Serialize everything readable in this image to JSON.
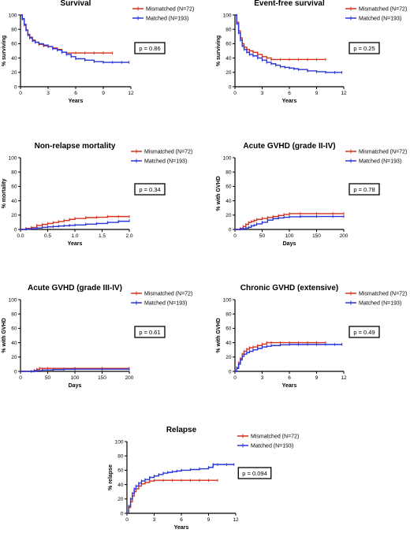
{
  "colors": {
    "mismatched": "#d4331f",
    "matched": "#2a36d8",
    "axis": "#000000"
  },
  "chart_data": [
    {
      "type": "line",
      "title": "Survival",
      "xlabel": "Years",
      "ylabel": "% surviving",
      "xlim": [
        0,
        12
      ],
      "ylim": [
        0,
        100
      ],
      "xticks": [
        0,
        3,
        6,
        9,
        12
      ],
      "yticks": [
        0,
        20,
        40,
        60,
        80,
        100
      ],
      "legend_position": "top-right",
      "pvalue": "p = 0.86",
      "series": [
        {
          "name": "Mismatched (N=72)",
          "color_key": "mismatched",
          "x": [
            0,
            0.2,
            0.4,
            0.6,
            0.8,
            1.0,
            1.3,
            1.6,
            2.0,
            2.5,
            3.0,
            3.5,
            4.0,
            4.5,
            5.0,
            6.0,
            7.0,
            8.0,
            9.0,
            10.0
          ],
          "y": [
            100,
            94,
            86,
            79,
            73,
            69,
            65,
            62,
            59,
            57,
            56,
            54,
            52,
            48,
            47,
            47,
            47,
            47,
            47,
            47
          ]
        },
        {
          "name": "Matched (N=193)",
          "color_key": "matched",
          "x": [
            0,
            0.2,
            0.4,
            0.6,
            0.8,
            1.0,
            1.3,
            1.6,
            2.0,
            2.5,
            3.0,
            3.5,
            4.0,
            4.5,
            5.0,
            5.5,
            6.0,
            7.0,
            8.0,
            9.0,
            10.0,
            11.0,
            11.8
          ],
          "y": [
            100,
            95,
            87,
            79,
            72,
            68,
            64,
            62,
            60,
            58,
            56,
            53,
            51,
            48,
            45,
            42,
            39,
            37,
            35,
            34,
            34,
            34,
            34
          ]
        }
      ]
    },
    {
      "type": "line",
      "title": "Event-free survival",
      "xlabel": "Years",
      "ylabel": "% surviving",
      "xlim": [
        0,
        12
      ],
      "ylim": [
        0,
        100
      ],
      "xticks": [
        0,
        3,
        6,
        9,
        12
      ],
      "yticks": [
        0,
        20,
        40,
        60,
        80,
        100
      ],
      "legend_position": "top-right",
      "pvalue": "p = 0.25",
      "series": [
        {
          "name": "Mismatched (N=72)",
          "color_key": "mismatched",
          "x": [
            0,
            0.2,
            0.4,
            0.6,
            0.8,
            1.0,
            1.3,
            1.6,
            2.0,
            2.5,
            3.0,
            3.5,
            4.0,
            5.0,
            6.0,
            7.0,
            8.0,
            9.0,
            10.0
          ],
          "y": [
            100,
            90,
            78,
            68,
            60,
            55,
            52,
            50,
            48,
            45,
            42,
            40,
            38,
            38,
            38,
            38,
            38,
            38,
            38
          ]
        },
        {
          "name": "Matched (N=193)",
          "color_key": "matched",
          "x": [
            0,
            0.2,
            0.4,
            0.6,
            0.8,
            1.0,
            1.3,
            1.6,
            2.0,
            2.5,
            3.0,
            3.5,
            4.0,
            4.5,
            5.0,
            5.5,
            6.0,
            6.5,
            7.0,
            8.0,
            9.0,
            10.0,
            11.0,
            11.8
          ],
          "y": [
            100,
            88,
            75,
            65,
            57,
            52,
            48,
            45,
            43,
            40,
            37,
            34,
            32,
            30,
            28,
            27,
            26,
            25,
            24,
            22,
            21,
            20,
            20,
            20
          ]
        }
      ]
    },
    {
      "type": "line",
      "title": "Non-relapse mortality",
      "xlabel": "Years",
      "ylabel": "% mortality",
      "xlim": [
        0,
        2
      ],
      "ylim": [
        0,
        100
      ],
      "xticks": [
        0.0,
        0.5,
        1.0,
        1.5,
        2.0
      ],
      "xtick_labels": [
        "0.0",
        "0.5",
        "1.0",
        "1.5",
        "2.0"
      ],
      "yticks": [
        0,
        20,
        40,
        60,
        80,
        100
      ],
      "legend_position": "top-right",
      "pvalue": "p = 0.34",
      "series": [
        {
          "name": "Mismatched (N=72)",
          "color_key": "mismatched",
          "x": [
            0,
            0.1,
            0.2,
            0.3,
            0.4,
            0.5,
            0.6,
            0.7,
            0.8,
            0.9,
            1.0,
            1.2,
            1.4,
            1.6,
            1.8,
            2.0
          ],
          "y": [
            0,
            1.4,
            2.8,
            5.6,
            7,
            8.3,
            9.7,
            11.1,
            12.5,
            14,
            15.3,
            16.5,
            17,
            18,
            18,
            18
          ]
        },
        {
          "name": "Matched (N=193)",
          "color_key": "matched",
          "x": [
            0,
            0.1,
            0.2,
            0.3,
            0.4,
            0.5,
            0.6,
            0.7,
            0.8,
            0.9,
            1.0,
            1.2,
            1.4,
            1.6,
            1.8,
            2.0
          ],
          "y": [
            0,
            0.5,
            1,
            2,
            3,
            3.6,
            4.1,
            4.7,
            5.2,
            5.7,
            6.2,
            7.3,
            8.3,
            9.8,
            11.4,
            12.4
          ]
        }
      ]
    },
    {
      "type": "line",
      "title": "Acute GVHD (grade II-IV)",
      "xlabel": "Days",
      "ylabel": "% with GVHD",
      "xlim": [
        0,
        200
      ],
      "ylim": [
        0,
        100
      ],
      "xticks": [
        0,
        50,
        100,
        150,
        200
      ],
      "yticks": [
        0,
        20,
        40,
        60,
        80,
        100
      ],
      "legend_position": "top-right",
      "pvalue": "p = 0.78",
      "series": [
        {
          "name": "Mismatched (N=72)",
          "color_key": "mismatched",
          "x": [
            0,
            10,
            15,
            20,
            25,
            30,
            35,
            40,
            50,
            60,
            70,
            80,
            90,
            100,
            120,
            150,
            180,
            200
          ],
          "y": [
            0,
            1.4,
            4,
            7,
            9.7,
            11.1,
            12.5,
            14,
            15.3,
            16.7,
            18,
            19.4,
            20.8,
            22,
            22,
            22,
            22,
            22
          ]
        },
        {
          "name": "Matched (N=193)",
          "color_key": "matched",
          "x": [
            0,
            10,
            15,
            20,
            25,
            30,
            35,
            40,
            50,
            60,
            70,
            80,
            90,
            100,
            120,
            150,
            180,
            200
          ],
          "y": [
            0,
            0.5,
            1,
            2,
            3,
            5,
            6,
            7.8,
            10,
            13,
            15,
            16,
            17,
            17.6,
            18,
            18.1,
            18.1,
            18.1
          ]
        }
      ]
    },
    {
      "type": "line",
      "title": "Acute GVHD (grade III-IV)",
      "xlabel": "Days",
      "ylabel": "% with GVHD",
      "xlim": [
        0,
        200
      ],
      "ylim": [
        0,
        100
      ],
      "xticks": [
        0,
        50,
        100,
        150,
        200
      ],
      "yticks": [
        0,
        20,
        40,
        60,
        80,
        100
      ],
      "legend_position": "top-right",
      "pvalue": "p = 0.61",
      "series": [
        {
          "name": "Mismatched (N=72)",
          "color_key": "mismatched",
          "x": [
            0,
            20,
            25,
            30,
            35,
            50,
            100,
            150,
            200
          ],
          "y": [
            0,
            0,
            1.4,
            2.8,
            4.2,
            4.2,
            4.2,
            4.2,
            4.2
          ]
        },
        {
          "name": "Matched (N=193)",
          "color_key": "matched",
          "x": [
            0,
            20,
            25,
            30,
            40,
            60,
            80,
            100,
            150,
            200
          ],
          "y": [
            0,
            0,
            0.5,
            1,
            2,
            2.6,
            3,
            3.1,
            3.1,
            3.1
          ]
        }
      ]
    },
    {
      "type": "line",
      "title": "Chronic GVHD (extensive)",
      "xlabel": "Years",
      "ylabel": "% with GVHD",
      "xlim": [
        0,
        12
      ],
      "ylim": [
        0,
        100
      ],
      "xticks": [
        0,
        3,
        6,
        9,
        12
      ],
      "yticks": [
        0,
        20,
        40,
        60,
        80,
        100
      ],
      "legend_position": "top-right",
      "pvalue": "p = 0.49",
      "series": [
        {
          "name": "Mismatched (N=72)",
          "color_key": "mismatched",
          "x": [
            0,
            0.2,
            0.4,
            0.6,
            0.8,
            1.0,
            1.3,
            1.6,
            2.0,
            2.5,
            3.0,
            3.5,
            4.0,
            5.0,
            6.0,
            7.0,
            8.0,
            9.0,
            10.0
          ],
          "y": [
            0,
            5,
            12,
            18,
            24,
            28,
            31,
            33,
            34,
            36,
            38,
            40,
            40,
            40,
            40,
            40,
            40,
            40,
            40
          ]
        },
        {
          "name": "Matched (N=193)",
          "color_key": "matched",
          "x": [
            0,
            0.2,
            0.4,
            0.6,
            0.8,
            1.0,
            1.3,
            1.6,
            2.0,
            2.5,
            3.0,
            3.5,
            4.0,
            5.0,
            6.0,
            7.0,
            8.0,
            9.0,
            10.0,
            11.0,
            11.8
          ],
          "y": [
            0,
            4,
            10,
            16,
            21,
            24,
            26,
            28,
            30,
            32,
            34,
            35,
            36,
            37,
            37.5,
            37.5,
            37.5,
            37.5,
            37.5,
            37.5,
            37.5
          ]
        }
      ]
    },
    {
      "type": "line",
      "title": "Relapse",
      "xlabel": "Years",
      "ylabel": "% relapse",
      "xlim": [
        0,
        12
      ],
      "ylim": [
        0,
        100
      ],
      "xticks": [
        0,
        3,
        6,
        9,
        12
      ],
      "yticks": [
        0,
        20,
        40,
        60,
        80,
        100
      ],
      "legend_position": "top-right",
      "pvalue": "p = 0.094",
      "series": [
        {
          "name": "Mismatched (N=72)",
          "color_key": "mismatched",
          "x": [
            0,
            0.2,
            0.4,
            0.6,
            0.8,
            1.0,
            1.3,
            1.6,
            2.0,
            2.5,
            3.0,
            4.0,
            5.0,
            6.0,
            7.0,
            8.0,
            9.0,
            10.0
          ],
          "y": [
            0,
            8,
            16,
            24,
            30,
            34,
            38,
            41,
            43,
            45,
            46,
            46,
            46,
            46,
            46,
            46,
            46,
            46
          ]
        },
        {
          "name": "Matched (N=193)",
          "color_key": "matched",
          "x": [
            0,
            0.2,
            0.4,
            0.6,
            0.8,
            1.0,
            1.3,
            1.6,
            2.0,
            2.5,
            3.0,
            3.5,
            4.0,
            4.5,
            5.0,
            5.5,
            6.0,
            7.0,
            8.0,
            9.0,
            9.5,
            10.0,
            11.0,
            11.8
          ],
          "y": [
            0,
            10,
            20,
            28,
            34,
            38,
            42,
            45,
            47,
            50,
            52,
            54,
            56,
            57,
            58,
            59,
            60,
            61,
            62,
            64,
            68,
            68,
            68,
            68
          ]
        }
      ]
    }
  ]
}
